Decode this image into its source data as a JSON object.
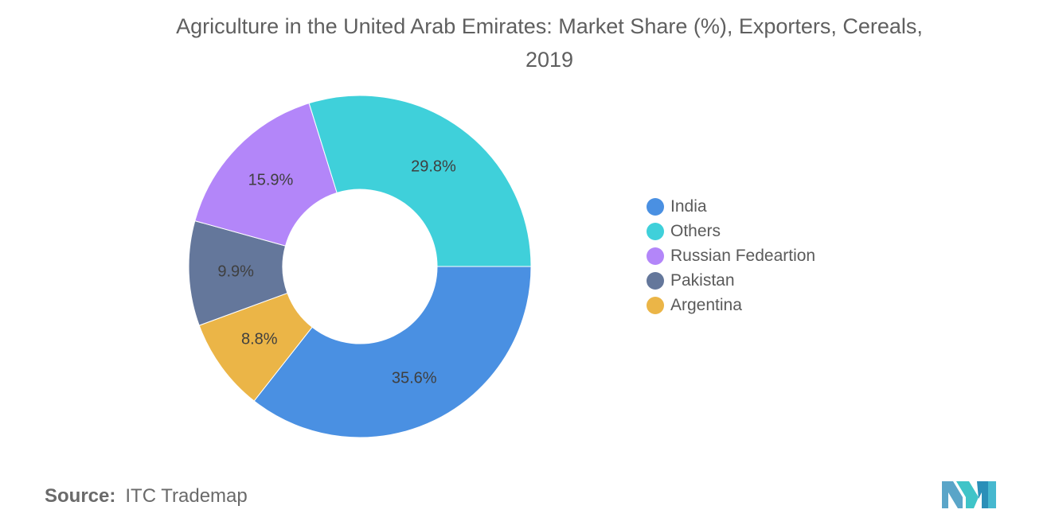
{
  "title_line1": "Agriculture in the United Arab Emirates: Market Share (%), Exporters, Cereals,",
  "title_line2": "2019",
  "source_label": "Source:",
  "source_text": "ITC Trademap",
  "chart_data": {
    "type": "pie",
    "donut": true,
    "title": "Agriculture in the United Arab Emirates: Market Share (%), Exporters, Cereals, 2019",
    "legend_position": "right",
    "slices": [
      {
        "label": "India",
        "value": 35.6,
        "display": "35.6%",
        "color": "#4a90e2"
      },
      {
        "label": "Argentina",
        "value": 8.8,
        "display": "8.8%",
        "color": "#ebb547"
      },
      {
        "label": "Pakistan",
        "value": 9.9,
        "display": "9.9%",
        "color": "#64779b"
      },
      {
        "label": "Russian Fedeartion",
        "value": 15.9,
        "display": "15.9%",
        "color": "#b386f9"
      },
      {
        "label": "Others",
        "value": 29.8,
        "display": "29.8%",
        "color": "#3fd0da"
      }
    ],
    "legend": [
      {
        "label": "India",
        "color": "#4a90e2"
      },
      {
        "label": "Others",
        "color": "#3fd0da"
      },
      {
        "label": "Russian Fedeartion",
        "color": "#b386f9"
      },
      {
        "label": "Pakistan",
        "color": "#64779b"
      },
      {
        "label": "Argentina",
        "color": "#ebb547"
      }
    ]
  }
}
